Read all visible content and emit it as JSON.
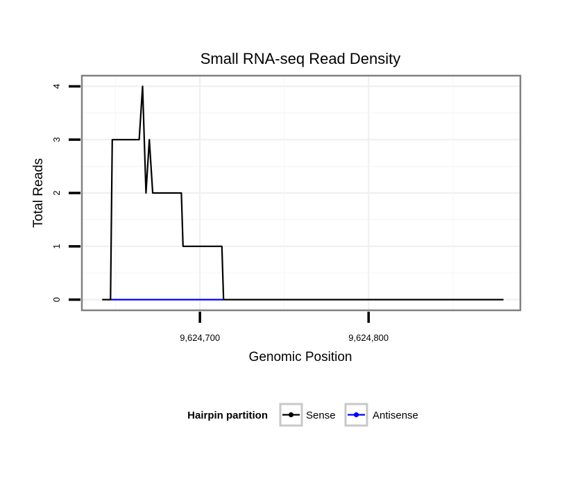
{
  "chart_data": {
    "type": "line",
    "title": "Small RNA-seq Read Density",
    "xlabel": "Genomic Position",
    "ylabel": "Total Reads",
    "xlim": [
      9624630,
      9624890
    ],
    "ylim": [
      -0.2,
      4.2
    ],
    "x_ticks": [
      9624700,
      9624800
    ],
    "x_tick_labels": [
      "9,624,700",
      "9,624,800"
    ],
    "y_ticks": [
      0,
      1,
      2,
      3,
      4
    ],
    "y_tick_labels": [
      "0",
      "1",
      "2",
      "3",
      "4"
    ],
    "grid": true,
    "legend": {
      "title": "Hairpin partition",
      "placement": "bottom",
      "entries": [
        "Sense",
        "Antisense"
      ]
    },
    "series": [
      {
        "name": "Sense",
        "color": "#000000",
        "x": [
          9624642,
          9624647,
          9624648,
          9624664,
          9624666,
          9624668,
          9624670,
          9624672,
          9624673,
          9624680,
          9624689,
          9624690,
          9624713,
          9624714,
          9624880
        ],
        "y": [
          0,
          0,
          3,
          3,
          4,
          2,
          3,
          2,
          2,
          2,
          2,
          1,
          1,
          0,
          0
        ]
      },
      {
        "name": "Antisense",
        "color": "#0000ff",
        "x": [
          9624647,
          9624714
        ],
        "y": [
          0,
          0
        ]
      }
    ]
  }
}
